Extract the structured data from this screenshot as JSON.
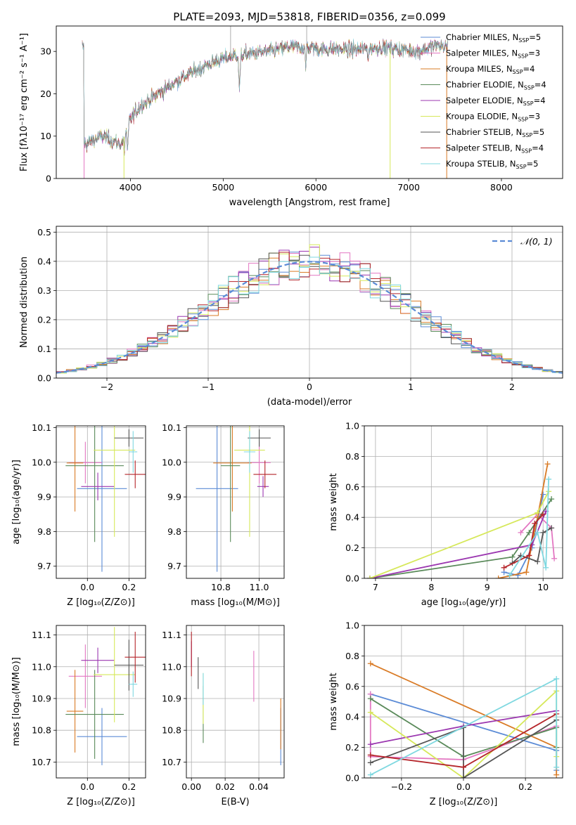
{
  "figure_title": "PLATE=2093, MJD=53818, FIBERID=0356, z=0.099",
  "colors": {
    "Chabrier MILES": "#5b8bd6",
    "Salpeter MILES": "#e377c2",
    "Kroupa MILES": "#d97b26",
    "Chabrier ELODIE": "#5a8a5a",
    "Salpeter ELODIE": "#9b37b0",
    "Kroupa ELODIE": "#d6e85a",
    "Chabrier STELIB": "#555555",
    "Salpeter STELIB": "#b5252a",
    "Kroupa STELIB": "#7fd8e0"
  },
  "chart_data": [
    {
      "id": "spectrum",
      "type": "line",
      "xlabel": "wavelength [Angstrom, rest frame]",
      "ylabel": "Flux [fλ10⁻¹⁷ erg cm⁻² s⁻¹ A⁻¹]",
      "xlim": [
        3200,
        8660
      ],
      "ylim": [
        0,
        36
      ],
      "xticks": [
        4000,
        5000,
        6000,
        7000,
        8000
      ],
      "yticks": [
        0,
        10,
        20,
        30
      ],
      "grid": false,
      "legend_position": "top-right",
      "legend": [
        {
          "model": "Chabrier MILES",
          "label": "Chabrier MILES, N",
          "sub": "SSP",
          "n": "=5"
        },
        {
          "model": "Salpeter MILES",
          "label": "Salpeter MILES, N",
          "sub": "SSP",
          "n": "=3"
        },
        {
          "model": "Kroupa MILES",
          "label": "Kroupa MILES, N",
          "sub": "SSP",
          "n": "=4"
        },
        {
          "model": "Chabrier ELODIE",
          "label": "Chabrier ELODIE, N",
          "sub": "SSP",
          "n": "=4"
        },
        {
          "model": "Salpeter ELODIE",
          "label": "Salpeter ELODIE, N",
          "sub": "SSP",
          "n": "=4"
        },
        {
          "model": "Kroupa ELODIE",
          "label": "Kroupa ELODIE, N",
          "sub": "SSP",
          "n": "=3"
        },
        {
          "model": "Chabrier STELIB",
          "label": "Chabrier STELIB, N",
          "sub": "SSP",
          "n": "=5"
        },
        {
          "model": "Salpeter STELIB",
          "label": "Salpeter STELIB, N",
          "sub": "SSP",
          "n": "=4"
        },
        {
          "model": "Kroupa STELIB",
          "label": "Kroupa STELIB, N",
          "sub": "SSP",
          "n": "=5"
        }
      ],
      "continuum": {
        "x": [
          3500,
          3700,
          3900,
          4000,
          4100,
          4300,
          4500,
          4700,
          4900,
          5100,
          5300,
          5500,
          5700,
          5900,
          6100,
          6300,
          6500,
          6700,
          6900,
          7100,
          7300,
          7400
        ],
        "y": [
          8,
          10,
          8,
          14,
          17,
          20,
          23,
          25.5,
          27.5,
          29,
          29.5,
          30,
          31,
          31,
          30.5,
          30.5,
          30.5,
          31,
          30.5,
          30,
          31.5,
          31
        ]
      },
      "absorption_features": [
        {
          "x": 3933,
          "y": 5
        },
        {
          "x": 3968,
          "y": 6
        },
        {
          "x": 5175,
          "y": 21
        },
        {
          "x": 5890,
          "y": 26
        },
        {
          "x": 6563,
          "y": 27
        }
      ],
      "model_cutoffs": [
        {
          "model": "Salpeter MILES",
          "x": 3500
        },
        {
          "model": "Kroupa ELODIE",
          "x": 3930
        },
        {
          "model": "Kroupa ELODIE",
          "x": 6800
        },
        {
          "model": "Kroupa MILES",
          "x": 7410
        }
      ],
      "overflow_spikes": [
        {
          "x": 5080
        },
        {
          "x": 5900
        }
      ]
    },
    {
      "id": "residuals",
      "type": "histogram",
      "xlabel": "(data-model)/error",
      "ylabel": "Normed distribution",
      "xlim": [
        -2.5,
        2.5
      ],
      "ylim": [
        0,
        0.52
      ],
      "xticks": [
        -2,
        -1,
        0,
        1,
        2
      ],
      "yticks": [
        0.0,
        0.1,
        0.2,
        0.3,
        0.4,
        0.5
      ],
      "grid": true,
      "legend_position": "top-right",
      "reference_label": "𝒩(0, 1)",
      "reference_color": "#5b8bd6",
      "bin_width": 0.1
    },
    {
      "id": "age_vs_Z",
      "type": "errorbar",
      "xlabel": "Z [log₁₀(Z/Z⊙)]",
      "ylabel": "age  [log₁₀(age/yr)]",
      "xlim": [
        -0.15,
        0.28
      ],
      "ylim": [
        9.665,
        10.105
      ],
      "xticks": [
        0.0,
        0.2
      ],
      "yticks": [
        9.7,
        9.8,
        9.9,
        10.0,
        10.1
      ],
      "grid": true,
      "points": [
        {
          "model": "Chabrier MILES",
          "x": 0.07,
          "y": 9.924,
          "xerr": 0.12,
          "yerr": 0.24
        },
        {
          "model": "Salpeter MILES",
          "x": -0.01,
          "y": 9.999,
          "xerr": 0.08,
          "yerr": 0.06
        },
        {
          "model": "Kroupa MILES",
          "x": -0.06,
          "y": 9.998,
          "xerr": 0.04,
          "yerr": 0.14
        },
        {
          "model": "Chabrier ELODIE",
          "x": 0.035,
          "y": 9.99,
          "xerr": 0.14,
          "yerr": 0.22
        },
        {
          "model": "Salpeter ELODIE",
          "x": 0.05,
          "y": 9.93,
          "xerr": 0.08,
          "yerr": 0.04
        },
        {
          "model": "Kroupa ELODIE",
          "x": 0.13,
          "y": 10.035,
          "xerr": 0.1,
          "yerr": 0.25
        },
        {
          "model": "Chabrier STELIB",
          "x": 0.2,
          "y": 10.07,
          "xerr": 0.07,
          "yerr": 0.025
        },
        {
          "model": "Salpeter STELIB",
          "x": 0.23,
          "y": 9.965,
          "xerr": 0.05,
          "yerr": 0.04
        },
        {
          "model": "Kroupa STELIB",
          "x": 0.22,
          "y": 10.03,
          "xerr": 0.02,
          "yerr": 0.06
        }
      ]
    },
    {
      "id": "age_vs_mass",
      "type": "errorbar",
      "xlabel": "mass [log₁₀(M/M⊙)]",
      "ylabel": "",
      "xlim": [
        10.62,
        11.13
      ],
      "ylim": [
        9.665,
        10.105
      ],
      "xticks": [
        10.8,
        11.0
      ],
      "yticks": [
        9.7,
        9.8,
        9.9,
        10.0,
        10.1
      ],
      "grid": true,
      "points": [
        {
          "model": "Chabrier MILES",
          "x": 10.78,
          "y": 9.924,
          "xerr": 0.11,
          "yerr": 0.24
        },
        {
          "model": "Salpeter MILES",
          "x": 11.0,
          "y": 9.999,
          "xerr": 0.06,
          "yerr": 0.06
        },
        {
          "model": "Kroupa MILES",
          "x": 10.86,
          "y": 9.998,
          "xerr": 0.1,
          "yerr": 0.14
        },
        {
          "model": "Chabrier ELODIE",
          "x": 10.85,
          "y": 9.99,
          "xerr": 0.05,
          "yerr": 0.22
        },
        {
          "model": "Salpeter ELODIE",
          "x": 11.02,
          "y": 9.93,
          "xerr": 0.03,
          "yerr": 0.03
        },
        {
          "model": "Kroupa ELODIE",
          "x": 10.95,
          "y": 10.035,
          "xerr": 0.08,
          "yerr": 0.25
        },
        {
          "model": "Chabrier STELIB",
          "x": 11.0,
          "y": 10.07,
          "xerr": 0.06,
          "yerr": 0.025
        },
        {
          "model": "Salpeter STELIB",
          "x": 11.03,
          "y": 9.965,
          "xerr": 0.06,
          "yerr": 0.04
        },
        {
          "model": "Kroupa STELIB",
          "x": 10.95,
          "y": 10.03,
          "xerr": 0.03,
          "yerr": 0.06
        }
      ]
    },
    {
      "id": "weight_vs_age",
      "type": "line",
      "xlabel": "age  [log₁₀(age/yr)]",
      "ylabel": "mass weight",
      "xlim": [
        6.8,
        10.35
      ],
      "ylim": [
        0,
        1
      ],
      "xticks": [
        7,
        8,
        9,
        10
      ],
      "yticks": [
        0.0,
        0.2,
        0.4,
        0.6,
        0.8,
        1.0
      ],
      "grid": true,
      "series": [
        {
          "model": "Chabrier MILES",
          "x": [
            9.3,
            9.55,
            9.8,
            10.0
          ],
          "y": [
            0.04,
            0.02,
            0.2,
            0.55
          ]
        },
        {
          "model": "Salpeter MILES",
          "x": [
            9.6,
            9.9,
            10.15,
            10.2
          ],
          "y": [
            0.3,
            0.42,
            0.33,
            0.13
          ]
        },
        {
          "model": "Kroupa MILES",
          "x": [
            9.2,
            9.7,
            9.9,
            10.08
          ],
          "y": [
            0.0,
            0.04,
            0.4,
            0.75
          ]
        },
        {
          "model": "Chabrier ELODIE",
          "x": [
            6.9,
            9.45,
            9.75,
            10.15
          ],
          "y": [
            0.0,
            0.14,
            0.3,
            0.52
          ]
        },
        {
          "model": "Salpeter ELODIE",
          "x": [
            6.9,
            9.8,
            10.05
          ],
          "y": [
            0.0,
            0.22,
            0.44
          ]
        },
        {
          "model": "Kroupa ELODIE",
          "x": [
            6.9,
            9.9,
            10.1
          ],
          "y": [
            0.0,
            0.43,
            0.57
          ]
        },
        {
          "model": "Chabrier STELIB",
          "x": [
            9.45,
            9.6,
            9.9,
            10.0,
            10.15
          ],
          "y": [
            0.1,
            0.15,
            0.11,
            0.3,
            0.33
          ]
        },
        {
          "model": "Salpeter STELIB",
          "x": [
            9.3,
            9.75,
            9.85,
            10.0
          ],
          "y": [
            0.07,
            0.15,
            0.36,
            0.42
          ]
        },
        {
          "model": "Kroupa STELIB",
          "x": [
            9.4,
            9.9,
            10.05,
            10.1
          ],
          "y": [
            0.02,
            0.3,
            0.07,
            0.65
          ]
        }
      ]
    },
    {
      "id": "mass_vs_Z",
      "type": "errorbar",
      "xlabel": "Z [log₁₀(Z/Z⊙)]",
      "ylabel": "mass [log₁₀(M/M⊙)]",
      "xlim": [
        -0.15,
        0.28
      ],
      "ylim": [
        10.65,
        11.13
      ],
      "xticks": [
        0.0,
        0.2
      ],
      "yticks": [
        10.7,
        10.8,
        10.9,
        11.0,
        11.1
      ],
      "grid": true,
      "points": [
        {
          "model": "Chabrier MILES",
          "x": 0.07,
          "y": 10.78,
          "xerr": 0.12,
          "yerr": 0.09
        },
        {
          "model": "Salpeter MILES",
          "x": -0.01,
          "y": 10.97,
          "xerr": 0.08,
          "yerr": 0.1
        },
        {
          "model": "Kroupa MILES",
          "x": -0.06,
          "y": 10.86,
          "xerr": 0.04,
          "yerr": 0.13
        },
        {
          "model": "Chabrier ELODIE",
          "x": 0.035,
          "y": 10.85,
          "xerr": 0.14,
          "yerr": 0.14
        },
        {
          "model": "Salpeter ELODIE",
          "x": 0.05,
          "y": 11.02,
          "xerr": 0.08,
          "yerr": 0.04
        },
        {
          "model": "Kroupa ELODIE",
          "x": 0.13,
          "y": 10.975,
          "xerr": 0.1,
          "yerr": 0.15
        },
        {
          "model": "Chabrier STELIB",
          "x": 0.2,
          "y": 11.005,
          "xerr": 0.07,
          "yerr": 0.08
        },
        {
          "model": "Salpeter STELIB",
          "x": 0.23,
          "y": 11.03,
          "xerr": 0.05,
          "yerr": 0.08
        },
        {
          "model": "Kroupa STELIB",
          "x": 0.22,
          "y": 10.945,
          "xerr": 0.02,
          "yerr": 0.04
        }
      ]
    },
    {
      "id": "mass_vs_EBV",
      "type": "errorbar",
      "xlabel": "E(B-V)",
      "ylabel": "",
      "xlim": [
        -0.003,
        0.055
      ],
      "ylim": [
        10.65,
        11.13
      ],
      "xticks": [
        0.0,
        0.02,
        0.04
      ],
      "yticks": [
        10.7,
        10.8,
        10.9,
        11.0,
        11.1
      ],
      "grid": true,
      "points": [
        {
          "model": "Chabrier MILES",
          "x": 0.053,
          "y": 10.78,
          "xerr": 0,
          "yerr": 0.09
        },
        {
          "model": "Salpeter MILES",
          "x": 0.037,
          "y": 10.97,
          "xerr": 0,
          "yerr": 0.08
        },
        {
          "model": "Kroupa MILES",
          "x": 0.053,
          "y": 10.82,
          "xerr": 0,
          "yerr": 0.08
        },
        {
          "model": "Chabrier ELODIE",
          "x": 0.007,
          "y": 10.85,
          "xerr": 0,
          "yerr": 0.09
        },
        {
          "model": "Salpeter ELODIE",
          "x": 0.0,
          "y": 11.04,
          "xerr": 0,
          "yerr": 0.04
        },
        {
          "model": "Kroupa ELODIE",
          "x": 0.007,
          "y": 10.9,
          "xerr": 0,
          "yerr": 0.08
        },
        {
          "model": "Chabrier STELIB",
          "x": 0.004,
          "y": 10.98,
          "xerr": 0,
          "yerr": 0.05
        },
        {
          "model": "Salpeter STELIB",
          "x": 0.0,
          "y": 11.04,
          "xerr": 0,
          "yerr": 0.07
        },
        {
          "model": "Kroupa STELIB",
          "x": 0.007,
          "y": 10.93,
          "xerr": 0,
          "yerr": 0.05
        }
      ]
    },
    {
      "id": "weight_vs_Z",
      "type": "line",
      "xlabel": "Z [log₁₀(Z/Z⊙)]",
      "ylabel": "mass weight",
      "xlim": [
        -0.32,
        0.32
      ],
      "ylim": [
        0,
        1
      ],
      "xticks": [
        -0.2,
        0.0,
        0.2
      ],
      "yticks": [
        0.0,
        0.2,
        0.4,
        0.6,
        0.8,
        1.0
      ],
      "grid": true,
      "series": [
        {
          "model": "Chabrier MILES",
          "x": [
            -0.3,
            0.3,
            0.3
          ],
          "y": [
            0.55,
            0.18,
            0.05
          ]
        },
        {
          "model": "Salpeter MILES",
          "x": [
            -0.3,
            -0.3,
            0.0,
            0.3
          ],
          "y": [
            0.55,
            0.14,
            0.12,
            0.34
          ]
        },
        {
          "model": "Kroupa MILES",
          "x": [
            -0.3,
            0.3,
            0.3
          ],
          "y": [
            0.75,
            0.2,
            0.02
          ]
        },
        {
          "model": "Chabrier ELODIE",
          "x": [
            -0.3,
            0.0,
            0.3,
            0.3
          ],
          "y": [
            0.52,
            0.14,
            0.33,
            0.2
          ]
        },
        {
          "model": "Salpeter ELODIE",
          "x": [
            -0.3,
            0.0,
            0.3
          ],
          "y": [
            0.22,
            0.34,
            0.44
          ]
        },
        {
          "model": "Kroupa ELODIE",
          "x": [
            -0.3,
            0.0,
            0.3,
            0.3
          ],
          "y": [
            0.43,
            0.0,
            0.57,
            0.14
          ]
        },
        {
          "model": "Chabrier STELIB",
          "x": [
            -0.3,
            0.0,
            0.0,
            0.3
          ],
          "y": [
            0.1,
            0.33,
            0.0,
            0.38
          ]
        },
        {
          "model": "Salpeter STELIB",
          "x": [
            -0.3,
            0.0,
            0.3
          ],
          "y": [
            0.15,
            0.07,
            0.42
          ]
        },
        {
          "model": "Kroupa STELIB",
          "x": [
            -0.3,
            0.3,
            0.3
          ],
          "y": [
            0.02,
            0.65,
            0.07
          ]
        }
      ]
    }
  ]
}
